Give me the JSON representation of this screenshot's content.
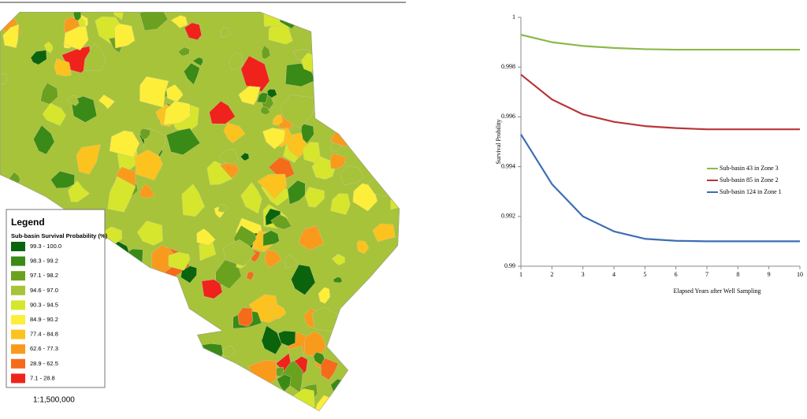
{
  "map": {
    "legend": {
      "title": "Legend",
      "subtitle": "Sub-basin Survival Probability (%)",
      "items": [
        {
          "label": "99.3 - 100.0",
          "color": "#0b640b"
        },
        {
          "label": "98.3 - 99.2",
          "color": "#3a8a17"
        },
        {
          "label": "97.1 - 98.2",
          "color": "#6aa21f"
        },
        {
          "label": "94.6 - 97.0",
          "color": "#a6c33a"
        },
        {
          "label": "90.3 - 94.5",
          "color": "#d6e62c"
        },
        {
          "label": "84.9 - 90.2",
          "color": "#fdee3a"
        },
        {
          "label": "77.4 - 84.8",
          "color": "#fcc21e"
        },
        {
          "label": "62.6 - 77.3",
          "color": "#f99a1c"
        },
        {
          "label": "28.9 - 62.5",
          "color": "#f56b1a"
        },
        {
          "label": "7.1 - 28.8",
          "color": "#f0221c"
        }
      ]
    },
    "scale": "1:1,500,000"
  },
  "chart_data": {
    "type": "line",
    "ylabel": "Survival Probility",
    "xlabel": "Elapsed Years  after Well Sampling",
    "x": [
      1,
      2,
      3,
      4,
      5,
      6,
      7,
      8,
      9,
      10
    ],
    "xlim": [
      1,
      10
    ],
    "xticks": [
      1,
      2,
      3,
      4,
      5,
      6,
      7,
      8,
      9,
      10
    ],
    "ylim": [
      0.99,
      1
    ],
    "yticks": [
      0.99,
      0.992,
      0.994,
      0.996,
      0.998,
      1
    ],
    "legend": "right",
    "series": [
      {
        "name": "Sub-basin 43 in Zone 3",
        "color": "#8db94a",
        "values": [
          0.9993,
          0.999,
          0.99885,
          0.99877,
          0.99872,
          0.9987,
          0.9987,
          0.9987,
          0.9987,
          0.9987
        ]
      },
      {
        "name": "Sub-basin 85 in Zone 2",
        "color": "#b8363a",
        "values": [
          0.9977,
          0.9967,
          0.9961,
          0.9958,
          0.99563,
          0.99555,
          0.9955,
          0.9955,
          0.9955,
          0.9955
        ]
      },
      {
        "name": "Sub-basin 124 in Zone 1",
        "color": "#3d6db5",
        "values": [
          0.9953,
          0.9933,
          0.992,
          0.9914,
          0.9911,
          0.99102,
          0.991,
          0.991,
          0.991,
          0.991
        ]
      }
    ]
  }
}
